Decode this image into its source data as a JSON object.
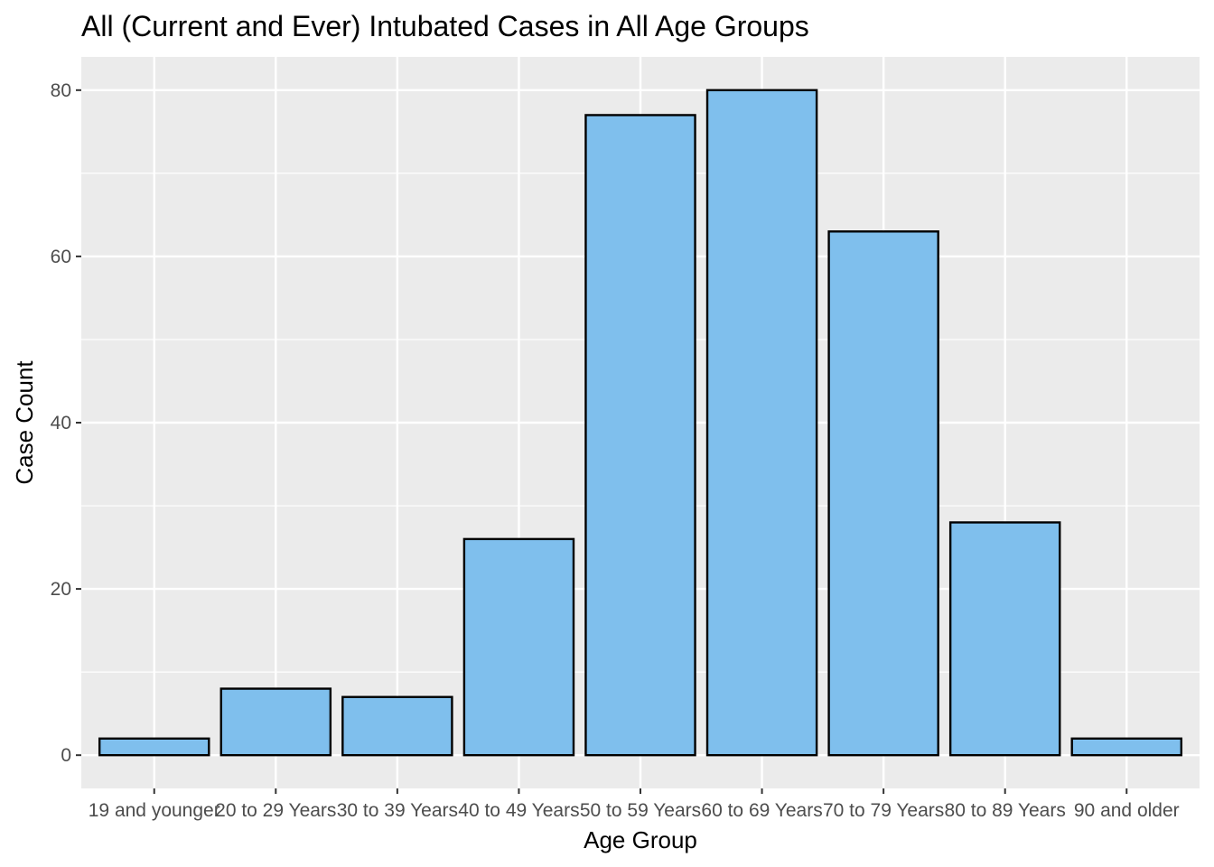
{
  "chart_data": {
    "type": "bar",
    "title": "All (Current and Ever) Intubated Cases in All Age Groups",
    "xlabel": "Age Group",
    "ylabel": "Case Count",
    "categories": [
      "19 and younger",
      "20 to 29 Years",
      "30 to 39 Years",
      "40 to 49 Years",
      "50 to 59 Years",
      "60 to 69 Years",
      "70 to 79 Years",
      "80 to 89 Years",
      "90 and older"
    ],
    "values": [
      2,
      8,
      7,
      26,
      77,
      80,
      63,
      28,
      2
    ],
    "ylim": [
      -4,
      84
    ],
    "yticks": [
      "0",
      "20",
      "40",
      "60",
      "80"
    ],
    "grid": true,
    "legend": "none",
    "colors": {
      "panel": "#ebebeb",
      "grid": "#ffffff",
      "bar_fill": "#7fbfed",
      "bar_stroke": "#000000"
    }
  }
}
